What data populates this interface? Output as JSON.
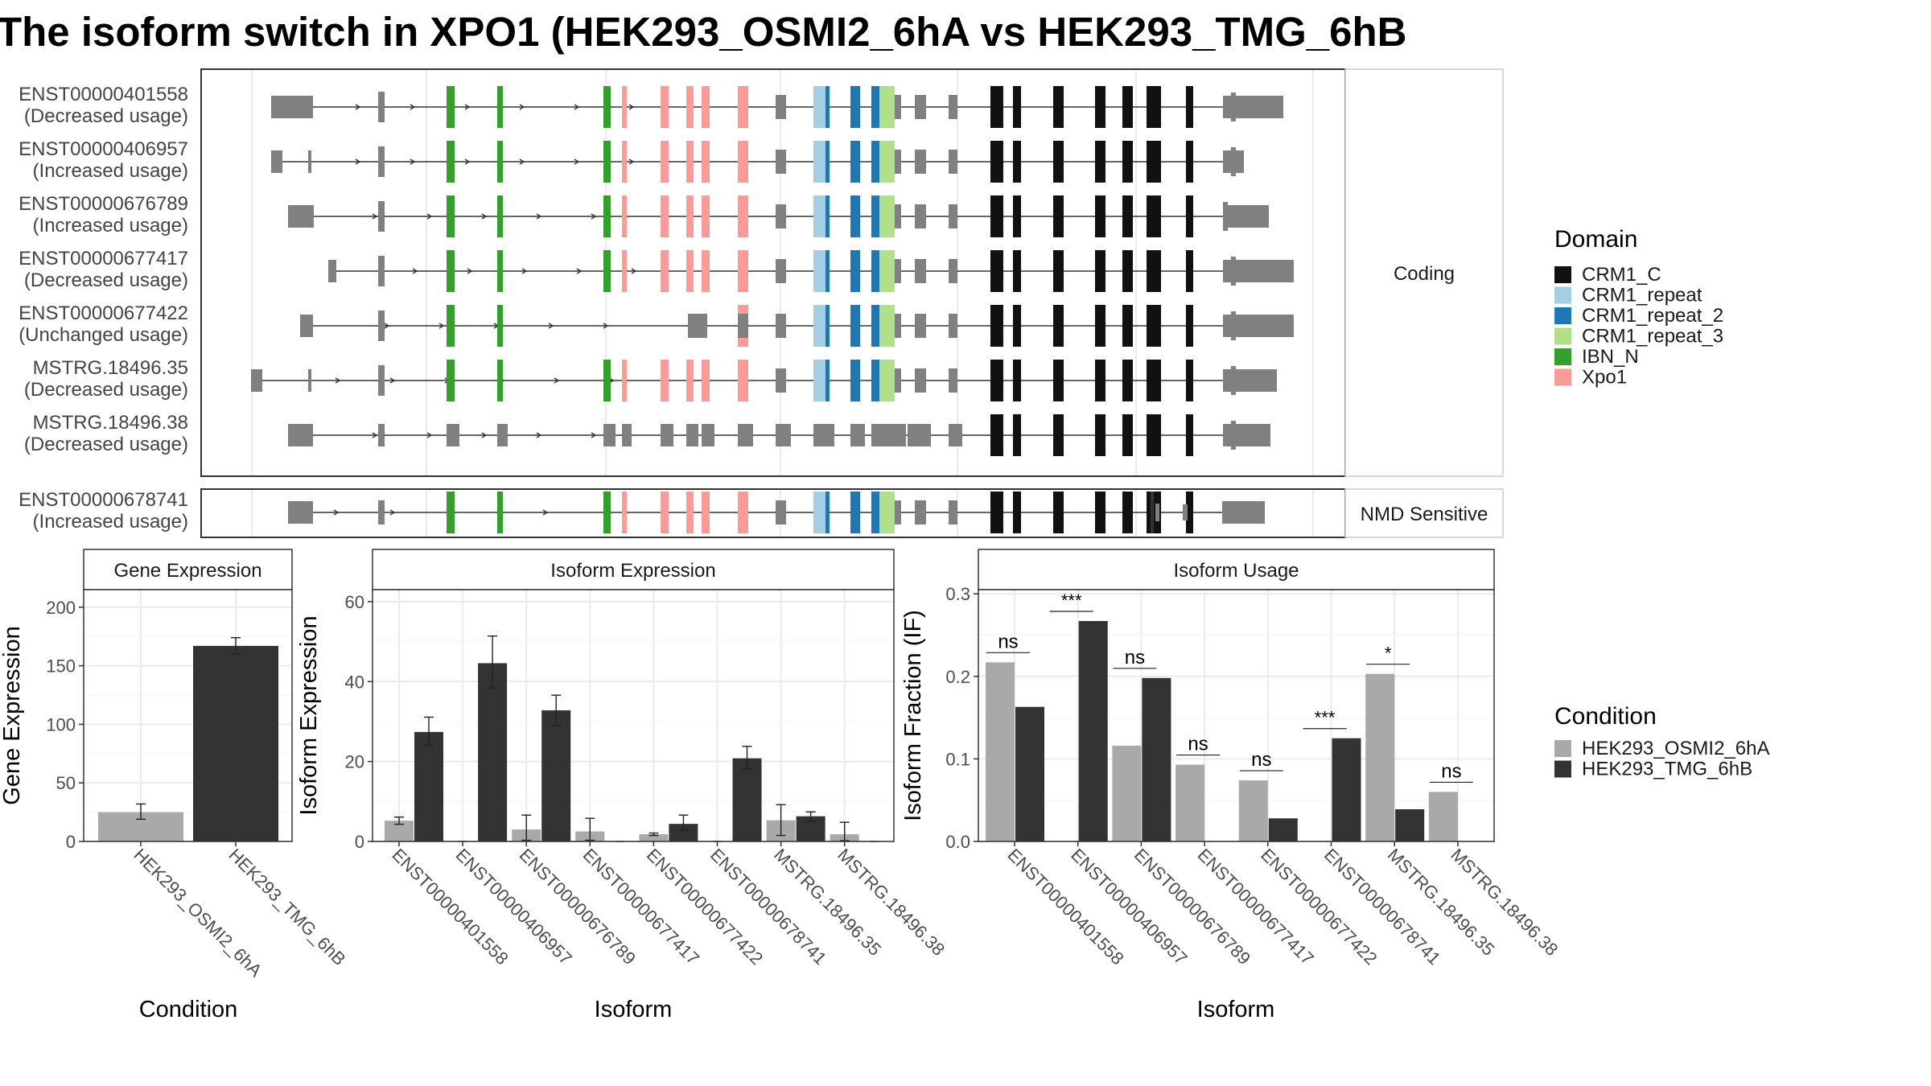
{
  "title": "The isoform switch in XPO1 (HEK293_OSMI2_6hA vs HEK293_TMG_6hB",
  "legends": {
    "domain": {
      "title": "Domain",
      "items": [
        {
          "label": "CRM1_C",
          "color": "#111111"
        },
        {
          "label": "CRM1_repeat",
          "color": "#a6cee3"
        },
        {
          "label": "CRM1_repeat_2",
          "color": "#1f78b4"
        },
        {
          "label": "CRM1_repeat_3",
          "color": "#b2df8a"
        },
        {
          "label": "IBN_N",
          "color": "#33a02c"
        },
        {
          "label": "Xpo1",
          "color": "#fb9a99"
        }
      ]
    },
    "condition": {
      "title": "Condition",
      "items": [
        {
          "label": "HEK293_OSMI2_6hA",
          "color": "#a9a9a9"
        },
        {
          "label": "HEK293_TMG_6hB",
          "color": "#333333"
        }
      ]
    }
  },
  "structure": {
    "groups": [
      {
        "strip": "Coding",
        "transcripts": [
          {
            "id": "ENST00000401558",
            "usage": "(Decreased usage)"
          },
          {
            "id": "ENST00000406957",
            "usage": "(Increased usage)"
          },
          {
            "id": "ENST00000676789",
            "usage": "(Increased usage)"
          },
          {
            "id": "ENST00000677417",
            "usage": "(Decreased usage)"
          },
          {
            "id": "ENST00000677422",
            "usage": "(Unchanged usage)"
          },
          {
            "id": "MSTRG.18496.35",
            "usage": "(Decreased usage)"
          },
          {
            "id": "MSTRG.18496.38",
            "usage": "(Decreased usage)"
          }
        ]
      },
      {
        "strip": "NMD Sensitive",
        "transcripts": [
          {
            "id": "ENST00000678741",
            "usage": "(Increased usage)"
          }
        ]
      }
    ]
  },
  "chart_data": [
    {
      "type": "bar",
      "title": "Gene Expression",
      "xlabel": "Condition",
      "ylabel": "Gene Expression",
      "ylim": [
        0,
        215
      ],
      "yticks": [
        0,
        50,
        100,
        150,
        200
      ],
      "categories": [
        "HEK293_OSMI2_6hA",
        "HEK293_TMG_6hB"
      ],
      "values": [
        25,
        167
      ],
      "error": [
        [
          19,
          32
        ],
        [
          160,
          174
        ]
      ]
    },
    {
      "type": "bar",
      "title": "Isoform Expression",
      "xlabel": "Isoform",
      "ylabel": "Isoform Expression",
      "ylim": [
        0,
        63
      ],
      "yticks": [
        0,
        20,
        40,
        60
      ],
      "categories": [
        "ENST00000401558",
        "ENST00000406957",
        "ENST00000676789",
        "ENST00000677417",
        "ENST00000677422",
        "ENST00000678741",
        "MSTRG.18496.35",
        "MSTRG.18496.38"
      ],
      "series": [
        {
          "name": "HEK293_OSMI2_6hA",
          "values": [
            5.2,
            0,
            3.0,
            2.5,
            1.8,
            0,
            5.3,
            1.8
          ],
          "error": [
            [
              4.3,
              6.1
            ],
            [
              0,
              0
            ],
            [
              0.3,
              6.6
            ],
            [
              0.3,
              5.8
            ],
            [
              1.5,
              2.1
            ],
            [
              0,
              0
            ],
            [
              1.5,
              9.2
            ],
            [
              0.2,
              4.8
            ]
          ]
        },
        {
          "name": "HEK293_TMG_6hB",
          "values": [
            27.4,
            44.6,
            32.8,
            0,
            4.4,
            20.8,
            6.3,
            0
          ],
          "error": [
            [
              24.1,
              31.1
            ],
            [
              38.4,
              51.4
            ],
            [
              29.0,
              36.6
            ],
            [
              0,
              0
            ],
            [
              2.8,
              6.6
            ],
            [
              18.1,
              23.8
            ],
            [
              5.0,
              7.4
            ],
            [
              0,
              0
            ]
          ]
        }
      ]
    },
    {
      "type": "bar",
      "title": "Isoform Usage",
      "xlabel": "Isoform",
      "ylabel": "Isoform Fraction (IF)",
      "ylim": [
        0,
        0.305
      ],
      "yticks": [
        "0.0",
        "0.1",
        "0.2",
        "0.3"
      ],
      "categories": [
        "ENST00000401558",
        "ENST00000406957",
        "ENST00000676789",
        "ENST00000677417",
        "ENST00000677422",
        "ENST00000678741",
        "MSTRG.18496.35",
        "MSTRG.18496.38"
      ],
      "series": [
        {
          "name": "HEK293_OSMI2_6hA",
          "values": [
            0.217,
            0,
            0.116,
            0.093,
            0.074,
            0,
            0.203,
            0.06
          ]
        },
        {
          "name": "HEK293_TMG_6hB",
          "values": [
            0.163,
            0.267,
            0.198,
            0,
            0.028,
            0.125,
            0.039,
            0
          ]
        }
      ],
      "significance": [
        "ns",
        "***",
        "ns",
        "ns",
        "ns",
        "***",
        "*",
        "ns"
      ]
    }
  ]
}
